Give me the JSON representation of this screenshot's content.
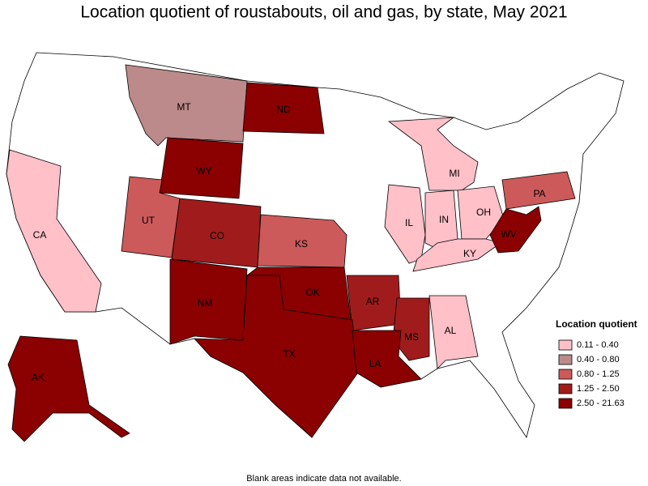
{
  "title": "Location quotient of roustabouts, oil and gas, by state, May 2021",
  "note": "Blank areas indicate data not available.",
  "legend": {
    "title": "Location quotient",
    "items": [
      {
        "label": "0.11 - 0.40",
        "color": "#ffc0c8"
      },
      {
        "label": "0.40 - 0.80",
        "color": "#bc8a8a"
      },
      {
        "label": "0.80 - 1.25",
        "color": "#cc5a5a"
      },
      {
        "label": "1.25 - 2.50",
        "color": "#a01c1c"
      },
      {
        "label": "2.50 - 21.63",
        "color": "#8b0000"
      }
    ]
  },
  "states": [
    {
      "label": "MT",
      "color": "#bc8a8a"
    },
    {
      "label": "ND",
      "color": "#8b0000"
    },
    {
      "label": "WY",
      "color": "#8b0000"
    },
    {
      "label": "CA",
      "color": "#ffc0c8"
    },
    {
      "label": "UT",
      "color": "#cc5a5a"
    },
    {
      "label": "CO",
      "color": "#a01c1c"
    },
    {
      "label": "KS",
      "color": "#cc5a5a"
    },
    {
      "label": "MI",
      "color": "#ffc0c8"
    },
    {
      "label": "IL",
      "color": "#ffc0c8"
    },
    {
      "label": "IN",
      "color": "#ffc0c8"
    },
    {
      "label": "OH",
      "color": "#ffc0c8"
    },
    {
      "label": "KY",
      "color": "#ffc0c8"
    },
    {
      "label": "PA",
      "color": "#cc5a5a"
    },
    {
      "label": "WV",
      "color": "#8b0000"
    },
    {
      "label": "NM",
      "color": "#8b0000"
    },
    {
      "label": "OK",
      "color": "#8b0000"
    },
    {
      "label": "AR",
      "color": "#a01c1c"
    },
    {
      "label": "MS",
      "color": "#a01c1c"
    },
    {
      "label": "AL",
      "color": "#ffc0c8"
    },
    {
      "label": "TX",
      "color": "#8b0000"
    },
    {
      "label": "LA",
      "color": "#8b0000"
    },
    {
      "label": "AK",
      "color": "#8b0000"
    }
  ]
}
